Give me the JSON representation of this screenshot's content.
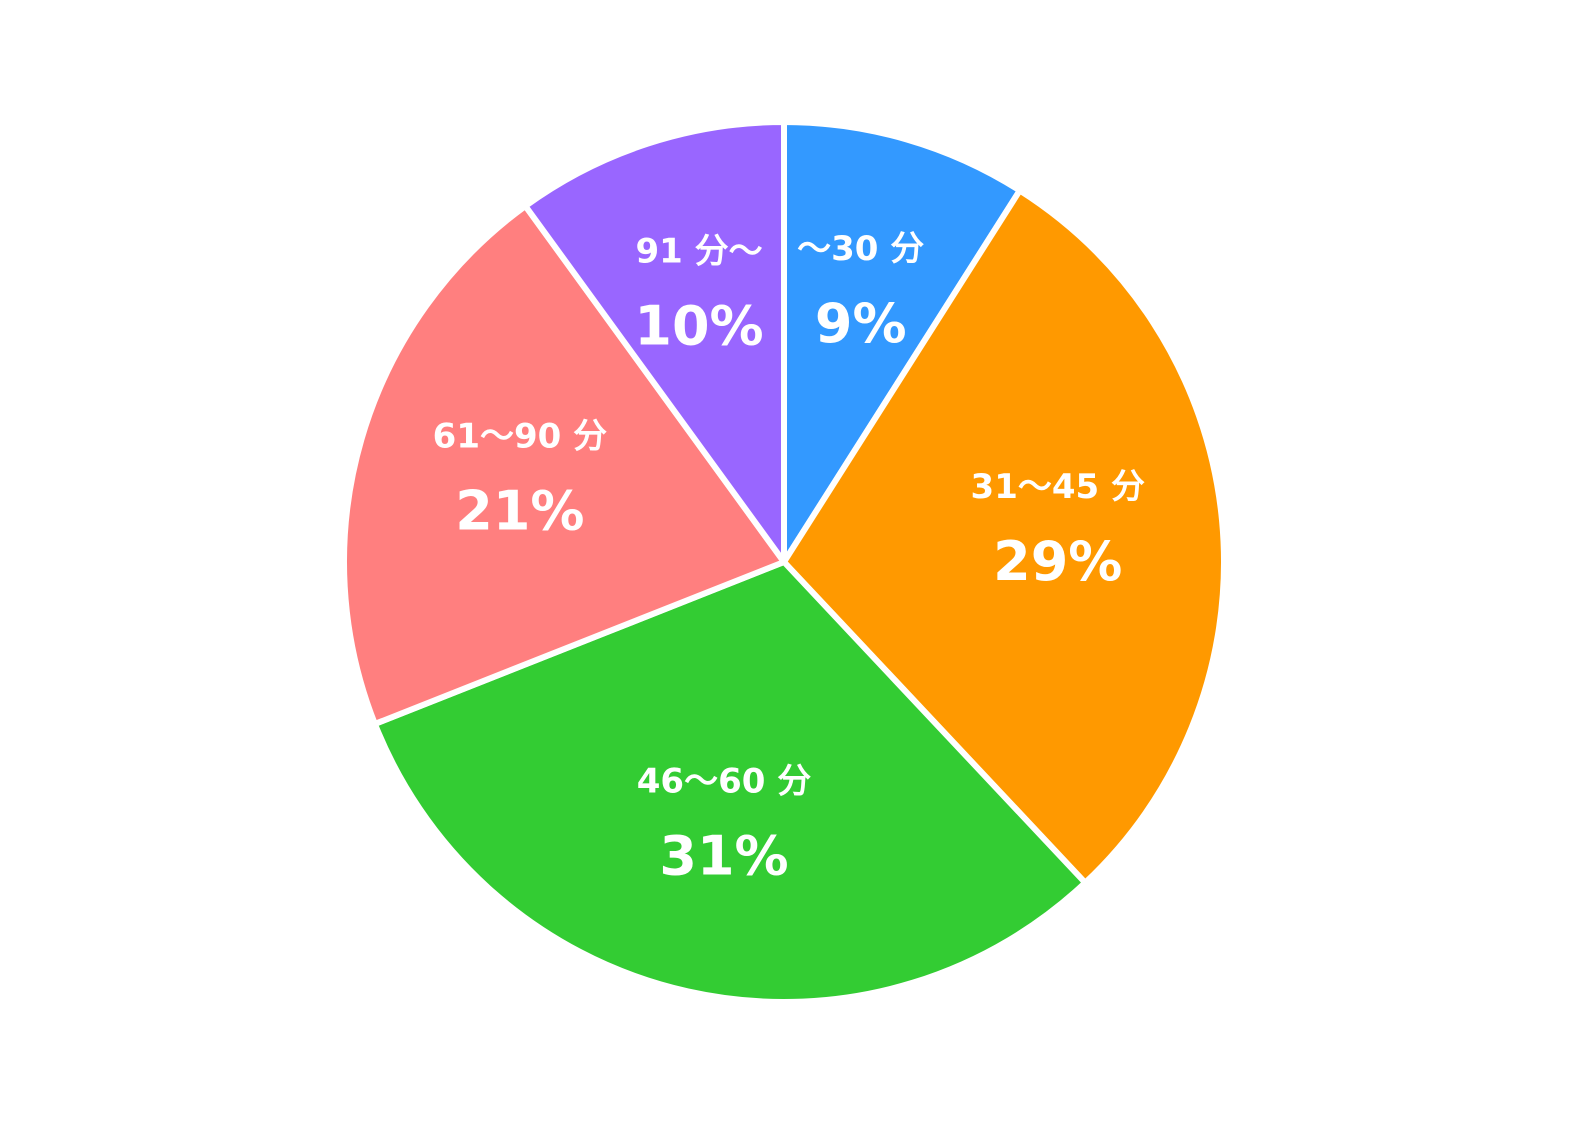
{
  "chart_data": {
    "type": "pie",
    "title": "",
    "categories": [
      "～30 分",
      "31～45 分",
      "46～60 分",
      "61～90 分",
      "91 分～"
    ],
    "values": [
      9,
      29,
      31,
      21,
      10
    ],
    "value_labels": [
      "9%",
      "29%",
      "31%",
      "21%",
      "10%"
    ],
    "colors": [
      "#3399FF",
      "#FF9900",
      "#33CC33",
      "#FF7F7F",
      "#9966FF"
    ],
    "start_angle": "12 o'clock",
    "direction": "clockwise",
    "slice_border_color": "#FFFFFF",
    "legend": "none"
  }
}
